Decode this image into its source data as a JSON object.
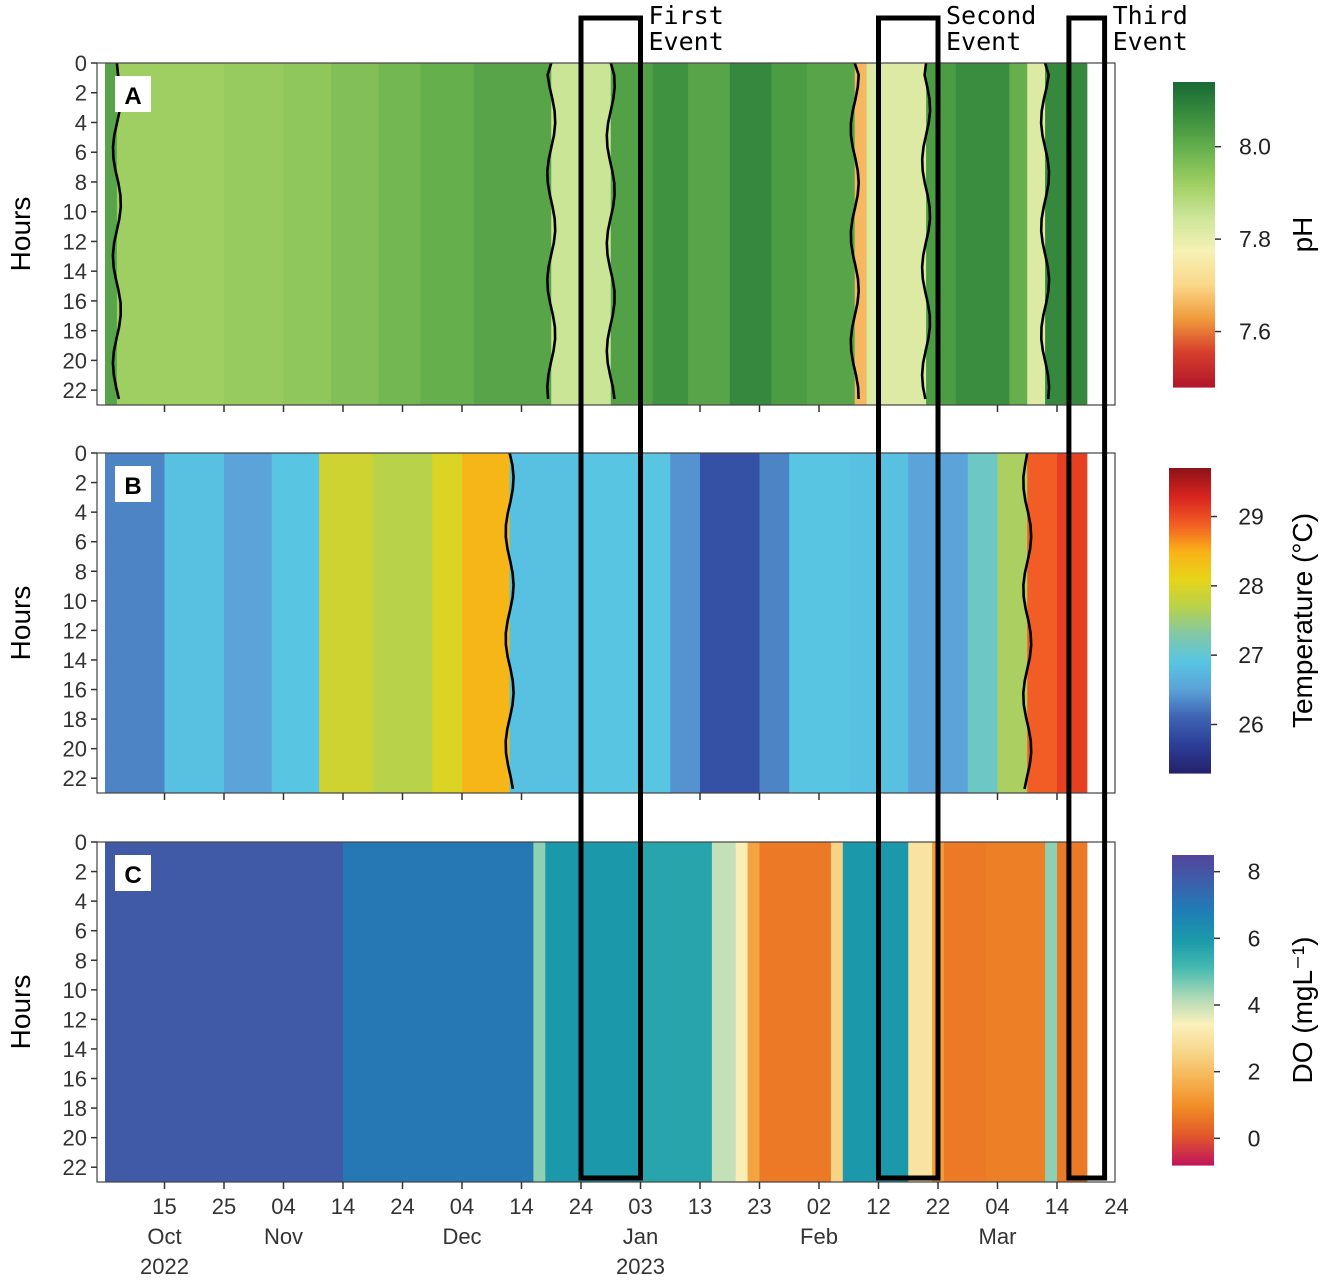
{
  "chart_data": [
    {
      "type": "heatmap",
      "panel_label": "A",
      "ylabel": "Hours",
      "colorbar_label": "pH",
      "colorbar_ticks": [
        {
          "label": "8.0",
          "value": 8.0
        },
        {
          "label": "7.8",
          "value": 7.8
        },
        {
          "label": "7.6",
          "value": 7.6
        }
      ],
      "colorbar_range": [
        7.48,
        8.14
      ],
      "colors": [
        "#b2182b",
        "#d6402c",
        "#f09b3c",
        "#fbd88a",
        "#f6f1b4",
        "#cde69a",
        "#9fcf62",
        "#69b24f",
        "#3b8f3e",
        "#1a6b36"
      ],
      "contour_level": 8.0,
      "series": [
        {
          "start": 0,
          "end": 2,
          "value": 8.02
        },
        {
          "start": 2,
          "end": 9,
          "value": 7.92
        },
        {
          "start": 9,
          "end": 20,
          "value": 7.92
        },
        {
          "start": 20,
          "end": 30,
          "value": 7.93
        },
        {
          "start": 30,
          "end": 38,
          "value": 7.94
        },
        {
          "start": 38,
          "end": 46,
          "value": 7.96
        },
        {
          "start": 46,
          "end": 53,
          "value": 7.98
        },
        {
          "start": 53,
          "end": 62,
          "value": 8.0
        },
        {
          "start": 62,
          "end": 75,
          "value": 8.02
        },
        {
          "start": 75,
          "end": 85,
          "value": 7.85
        },
        {
          "start": 85,
          "end": 92,
          "value": 8.03
        },
        {
          "start": 92,
          "end": 98,
          "value": 8.06
        },
        {
          "start": 98,
          "end": 105,
          "value": 8.02
        },
        {
          "start": 105,
          "end": 112,
          "value": 8.08
        },
        {
          "start": 112,
          "end": 118,
          "value": 8.04
        },
        {
          "start": 118,
          "end": 126,
          "value": 8.02
        },
        {
          "start": 126,
          "end": 128,
          "value": 7.66
        },
        {
          "start": 128,
          "end": 138,
          "value": 7.82
        },
        {
          "start": 138,
          "end": 143,
          "value": 8.04
        },
        {
          "start": 143,
          "end": 152,
          "value": 8.07
        },
        {
          "start": 152,
          "end": 155,
          "value": 8.0
        },
        {
          "start": 155,
          "end": 158,
          "value": 7.82
        },
        {
          "start": 158,
          "end": 165,
          "value": 8.08
        }
      ]
    },
    {
      "type": "heatmap",
      "panel_label": "B",
      "ylabel": "Hours",
      "colorbar_label": "Temperature (°C)",
      "colorbar_ticks": [
        {
          "label": "29",
          "value": 29
        },
        {
          "label": "28",
          "value": 28
        },
        {
          "label": "27",
          "value": 27
        },
        {
          "label": "26",
          "value": 26
        }
      ],
      "colorbar_range": [
        25.3,
        29.7
      ],
      "colors": [
        "#26246e",
        "#2c3f99",
        "#3f64b4",
        "#5ba3d8",
        "#58c5e2",
        "#82c8a6",
        "#b8d24a",
        "#e6d419",
        "#fab217",
        "#f25c25",
        "#d9241f",
        "#8f1318"
      ],
      "contour_level": 28.0,
      "series": [
        {
          "start": 0,
          "end": 10,
          "value": 26.3
        },
        {
          "start": 10,
          "end": 20,
          "value": 26.85
        },
        {
          "start": 20,
          "end": 28,
          "value": 26.5
        },
        {
          "start": 28,
          "end": 36,
          "value": 26.9
        },
        {
          "start": 36,
          "end": 45,
          "value": 27.9
        },
        {
          "start": 45,
          "end": 55,
          "value": 27.7
        },
        {
          "start": 55,
          "end": 60,
          "value": 28.0
        },
        {
          "start": 60,
          "end": 68,
          "value": 28.45
        },
        {
          "start": 68,
          "end": 80,
          "value": 26.85
        },
        {
          "start": 80,
          "end": 95,
          "value": 26.9
        },
        {
          "start": 95,
          "end": 100,
          "value": 26.4
        },
        {
          "start": 100,
          "end": 110,
          "value": 25.9
        },
        {
          "start": 110,
          "end": 115,
          "value": 26.3
        },
        {
          "start": 115,
          "end": 125,
          "value": 26.9
        },
        {
          "start": 125,
          "end": 135,
          "value": 26.85
        },
        {
          "start": 135,
          "end": 145,
          "value": 26.5
        },
        {
          "start": 145,
          "end": 150,
          "value": 27.1
        },
        {
          "start": 150,
          "end": 155,
          "value": 27.6
        },
        {
          "start": 155,
          "end": 160,
          "value": 28.9
        },
        {
          "start": 160,
          "end": 165,
          "value": 29.1
        }
      ]
    },
    {
      "type": "heatmap",
      "panel_label": "C",
      "ylabel": "Hours",
      "colorbar_label": "DO (mgL⁻¹)",
      "colorbar_ticks": [
        {
          "label": "8",
          "value": 8
        },
        {
          "label": "6",
          "value": 6
        },
        {
          "label": "4",
          "value": 4
        },
        {
          "label": "2",
          "value": 2
        },
        {
          "label": "0",
          "value": 0
        }
      ],
      "colorbar_range": [
        -0.8,
        8.5
      ],
      "colors": [
        "#c2185b",
        "#e1582b",
        "#f08a24",
        "#f5b352",
        "#f7d68a",
        "#fbf1bd",
        "#a9d8b5",
        "#45b9b0",
        "#1b9aaa",
        "#1f7fb6",
        "#3a62ac",
        "#52479c"
      ],
      "series": [
        {
          "start": 0,
          "end": 40,
          "value": 7.9
        },
        {
          "start": 40,
          "end": 72,
          "value": 7.0
        },
        {
          "start": 72,
          "end": 74,
          "value": 4.5
        },
        {
          "start": 74,
          "end": 90,
          "value": 6.0
        },
        {
          "start": 90,
          "end": 102,
          "value": 5.7
        },
        {
          "start": 102,
          "end": 106,
          "value": 4.0
        },
        {
          "start": 106,
          "end": 108,
          "value": 3.3
        },
        {
          "start": 108,
          "end": 110,
          "value": 1.4
        },
        {
          "start": 110,
          "end": 122,
          "value": 0.6
        },
        {
          "start": 122,
          "end": 124,
          "value": 2.5
        },
        {
          "start": 124,
          "end": 135,
          "value": 6.0
        },
        {
          "start": 135,
          "end": 139,
          "value": 3.0
        },
        {
          "start": 139,
          "end": 141,
          "value": 1.3
        },
        {
          "start": 141,
          "end": 148,
          "value": 0.6
        },
        {
          "start": 148,
          "end": 158,
          "value": 0.7
        },
        {
          "start": 158,
          "end": 160,
          "value": 4.5
        },
        {
          "start": 160,
          "end": 165,
          "value": 0.6
        }
      ]
    }
  ],
  "y_ticks": [
    "0",
    "2",
    "4",
    "6",
    "8",
    "10",
    "12",
    "14",
    "16",
    "18",
    "20",
    "22"
  ],
  "y_range": [
    0,
    23
  ],
  "x_range": [
    0,
    165
  ],
  "x_ticks": [
    {
      "label": "15",
      "day": 10,
      "month": "Oct",
      "year": "2022"
    },
    {
      "label": "25",
      "day": 20
    },
    {
      "label": "04",
      "day": 30,
      "month": "Nov"
    },
    {
      "label": "14",
      "day": 40
    },
    {
      "label": "24",
      "day": 50
    },
    {
      "label": "04",
      "day": 60,
      "month": "Dec"
    },
    {
      "label": "14",
      "day": 70
    },
    {
      "label": "24",
      "day": 80
    },
    {
      "label": "03",
      "day": 90,
      "month": "Jan",
      "year": "2023"
    },
    {
      "label": "13",
      "day": 100
    },
    {
      "label": "23",
      "day": 110
    },
    {
      "label": "02",
      "day": 120,
      "month": "Feb"
    },
    {
      "label": "12",
      "day": 130
    },
    {
      "label": "22",
      "day": 140
    },
    {
      "label": "04",
      "day": 150,
      "month": "Mar"
    },
    {
      "label": "14",
      "day": 160
    },
    {
      "label": "24",
      "day": 170
    }
  ],
  "events": [
    {
      "title": "First",
      "subtitle": "Event",
      "start": 80,
      "end": 90
    },
    {
      "title": "Second",
      "subtitle": "Event",
      "start": 130,
      "end": 140
    },
    {
      "title": "Third",
      "subtitle": "Event",
      "start": 162,
      "end": 168
    }
  ]
}
